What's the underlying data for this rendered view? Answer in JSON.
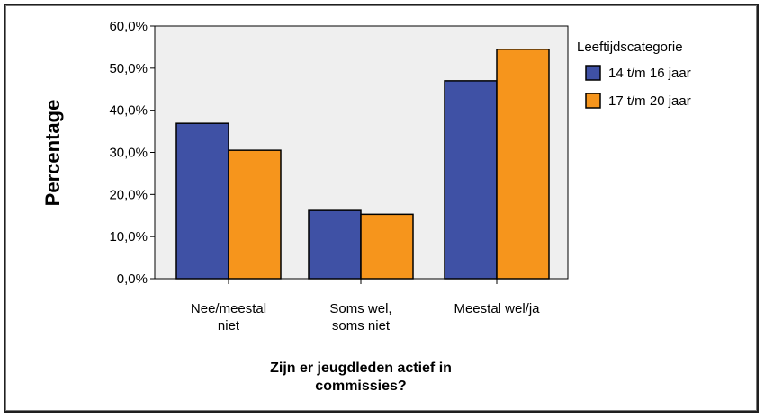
{
  "chart_data": {
    "type": "bar",
    "categories": [
      [
        "Nee/meestal",
        "niet"
      ],
      [
        "Soms wel,",
        "soms niet"
      ],
      [
        "Meestal wel/ja"
      ]
    ],
    "series": [
      {
        "name": "14 t/m 16 jaar",
        "values": [
          36.9,
          16.2,
          47.0
        ],
        "color": "#3f51a5"
      },
      {
        "name": "17 t/m 20 jaar",
        "values": [
          30.5,
          15.3,
          54.5
        ],
        "color": "#f6951c"
      }
    ],
    "title": "",
    "xlabel": [
      "Zijn er jeugdleden actief in",
      "commissies?"
    ],
    "ylabel": "Percentage",
    "ylim": [
      0,
      60
    ],
    "yticks": [
      "0,0%",
      "10,0%",
      "20,0%",
      "30,0%",
      "40,0%",
      "50,0%",
      "60,0%"
    ],
    "legend": {
      "title": "Leeftijdscategorie",
      "position": "top-right"
    },
    "plot_background": "#efefef",
    "grid": false
  }
}
